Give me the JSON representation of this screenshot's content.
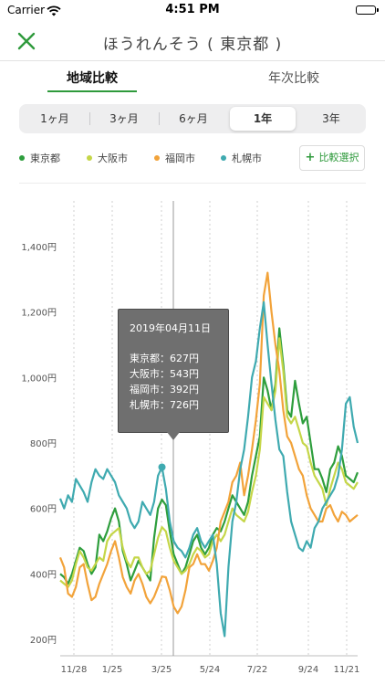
{
  "status_bar": {
    "carrier": "Carrier",
    "time": "4:51 PM"
  },
  "nav": {
    "title": "ほうれんそう ( 東京都 )",
    "close_icon": "close-x-icon",
    "accent": "#2f9a3c"
  },
  "tabs": [
    {
      "label": "地域比較",
      "selected": true
    },
    {
      "label": "年次比較",
      "selected": false
    }
  ],
  "periods": [
    {
      "label": "1ヶ月",
      "selected": false
    },
    {
      "label": "3ヶ月",
      "selected": false
    },
    {
      "label": "6ヶ月",
      "selected": false
    },
    {
      "label": "1年",
      "selected": true
    },
    {
      "label": "3年",
      "selected": false
    }
  ],
  "legend": [
    {
      "label": "東京都",
      "color": "#2e9e3d"
    },
    {
      "label": "大阪市",
      "color": "#c5d648"
    },
    {
      "label": "福岡市",
      "color": "#f2a33a"
    },
    {
      "label": "札幌市",
      "color": "#3faab0"
    }
  ],
  "compare_button": {
    "label": "比較選択",
    "icon": "plus-icon"
  },
  "tooltip": {
    "date": "2019年04月11日",
    "rows": [
      "東京都：627円",
      "大阪市：543円",
      "福岡市：392円",
      "札幌市：726円"
    ]
  },
  "chart_data": {
    "type": "line",
    "x_ticks": [
      "11/28",
      "1/25",
      "3/25",
      "5/24",
      "7/22",
      "9/24",
      "11/21"
    ],
    "y_ticks": [
      "200円",
      "400円",
      "600円",
      "800円",
      "1,000円",
      "1,200円",
      "1,400円"
    ],
    "ylim": [
      150,
      1450
    ],
    "y_unit": "円",
    "highlight_x": "4/11",
    "grid": "dashed vertical",
    "series": [
      {
        "name": "東京都",
        "color": "#2e9e3d",
        "values": [
          400,
          390,
          370,
          400,
          440,
          480,
          470,
          430,
          400,
          420,
          520,
          500,
          530,
          570,
          600,
          560,
          470,
          430,
          380,
          410,
          440,
          420,
          400,
          380,
          510,
          600,
          627,
          610,
          530,
          460,
          430,
          400,
          420,
          460,
          500,
          520,
          480,
          460,
          480,
          520,
          540,
          530,
          560,
          600,
          640,
          620,
          600,
          580,
          620,
          700,
          760,
          820,
          1000,
          960,
          900,
          980,
          1150,
          1040,
          900,
          880,
          990,
          920,
          860,
          880,
          800,
          720,
          720,
          690,
          650,
          720,
          740,
          790,
          760,
          700,
          690,
          680,
          710
        ]
      },
      {
        "name": "大阪市",
        "color": "#c5d648",
        "values": [
          380,
          370,
          360,
          380,
          430,
          470,
          450,
          420,
          410,
          430,
          450,
          440,
          500,
          520,
          530,
          540,
          480,
          440,
          420,
          450,
          450,
          420,
          400,
          410,
          460,
          510,
          543,
          530,
          480,
          440,
          420,
          400,
          410,
          430,
          460,
          480,
          470,
          450,
          460,
          500,
          520,
          500,
          520,
          560,
          600,
          580,
          570,
          560,
          590,
          650,
          700,
          780,
          940,
          920,
          900,
          960,
          1120,
          1020,
          880,
          860,
          880,
          840,
          800,
          790,
          740,
          700,
          680,
          660,
          610,
          660,
          700,
          740,
          720,
          680,
          670,
          660,
          680
        ]
      },
      {
        "name": "福岡市",
        "color": "#f2a33a",
        "values": [
          450,
          420,
          340,
          330,
          360,
          420,
          430,
          370,
          320,
          330,
          370,
          400,
          430,
          470,
          500,
          450,
          390,
          360,
          340,
          380,
          400,
          370,
          330,
          310,
          330,
          360,
          392,
          390,
          350,
          300,
          280,
          300,
          350,
          420,
          430,
          460,
          430,
          430,
          410,
          440,
          480,
          560,
          590,
          620,
          680,
          700,
          740,
          640,
          700,
          780,
          870,
          980,
          1250,
          1320,
          1200,
          1100,
          1020,
          900,
          820,
          800,
          760,
          720,
          700,
          640,
          600,
          580,
          560,
          560,
          600,
          610,
          580,
          560,
          590,
          580,
          560,
          570,
          580
        ]
      },
      {
        "name": "札幌市",
        "color": "#3faab0",
        "values": [
          630,
          600,
          640,
          620,
          690,
          670,
          650,
          620,
          680,
          720,
          700,
          690,
          720,
          700,
          680,
          640,
          620,
          600,
          560,
          540,
          560,
          620,
          600,
          580,
          620,
          700,
          726,
          660,
          560,
          500,
          480,
          470,
          450,
          480,
          520,
          540,
          500,
          480,
          500,
          520,
          430,
          280,
          210,
          420,
          560,
          620,
          720,
          780,
          880,
          1000,
          1050,
          1150,
          1230,
          1100,
          980,
          870,
          780,
          760,
          650,
          560,
          520,
          480,
          470,
          500,
          480,
          540,
          560,
          600,
          620,
          640,
          660,
          700,
          780,
          920,
          940,
          850,
          800
        ]
      }
    ]
  }
}
